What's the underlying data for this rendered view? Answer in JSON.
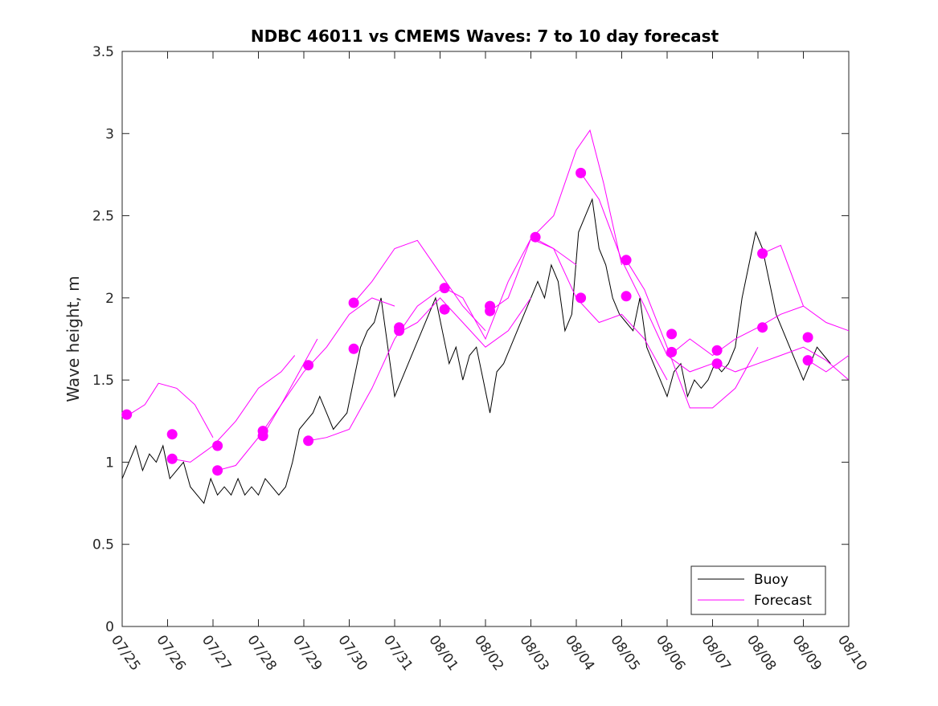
{
  "chart_data": {
    "type": "line",
    "title": "NDBC 46011 vs CMEMS Waves: 7 to 10 day forecast",
    "xlabel": "",
    "ylabel": "Wave height, m",
    "x_ticks": [
      "07/25",
      "07/26",
      "07/27",
      "07/28",
      "07/29",
      "07/30",
      "07/31",
      "08/01",
      "08/02",
      "08/03",
      "08/04",
      "08/05",
      "08/06",
      "08/07",
      "08/08",
      "08/09",
      "08/10"
    ],
    "y_ticks": [
      "0",
      "0.5",
      "1",
      "1.5",
      "2",
      "2.5",
      "3",
      "3.5"
    ],
    "ylim": [
      0,
      3.5
    ],
    "xlim": [
      0,
      16
    ],
    "x_unit": "days after 07/25",
    "grid": false,
    "legend_position": "bottom-right",
    "colors": {
      "buoy": "#000000",
      "forecast": "#ff00ff"
    },
    "series": [
      {
        "name": "Buoy",
        "type": "line",
        "x": [
          0,
          0.15,
          0.3,
          0.45,
          0.6,
          0.75,
          0.9,
          1.05,
          1.2,
          1.35,
          1.5,
          1.65,
          1.8,
          1.95,
          2.1,
          2.25,
          2.4,
          2.55,
          2.7,
          2.85,
          3.0,
          3.15,
          3.3,
          3.45,
          3.6,
          3.75,
          3.9,
          4.05,
          4.2,
          4.35,
          4.5,
          4.65,
          4.8,
          4.95,
          5.1,
          5.25,
          5.4,
          5.55,
          5.7,
          5.85,
          6.0,
          6.15,
          6.3,
          6.45,
          6.6,
          6.75,
          6.9,
          7.05,
          7.2,
          7.35,
          7.5,
          7.65,
          7.8,
          7.95,
          8.1,
          8.25,
          8.4,
          8.55,
          8.7,
          8.85,
          9.0,
          9.15,
          9.3,
          9.45,
          9.6,
          9.75,
          9.9,
          10.05,
          10.2,
          10.35,
          10.5,
          10.65,
          10.8,
          10.95,
          11.1,
          11.25,
          11.4,
          11.55,
          11.7,
          11.85,
          12.0,
          12.15,
          12.3,
          12.45,
          12.6,
          12.75,
          12.9,
          13.05,
          13.2,
          13.35,
          13.5,
          13.65,
          13.8,
          13.95,
          14.1,
          14.25,
          14.4,
          14.55,
          14.7,
          14.85,
          15.0,
          15.15,
          15.3,
          15.45,
          15.6
        ],
        "values": [
          0.9,
          1.0,
          1.1,
          0.95,
          1.05,
          1.0,
          1.1,
          0.9,
          0.95,
          1.0,
          0.85,
          0.8,
          0.75,
          0.9,
          0.8,
          0.85,
          0.8,
          0.9,
          0.8,
          0.85,
          0.8,
          0.9,
          0.85,
          0.8,
          0.85,
          1.0,
          1.2,
          1.25,
          1.3,
          1.4,
          1.3,
          1.2,
          1.25,
          1.3,
          1.5,
          1.7,
          1.8,
          1.85,
          2.0,
          1.7,
          1.4,
          1.5,
          1.6,
          1.7,
          1.8,
          1.9,
          2.0,
          1.8,
          1.6,
          1.7,
          1.5,
          1.65,
          1.7,
          1.5,
          1.3,
          1.55,
          1.6,
          1.7,
          1.8,
          1.9,
          2.0,
          2.1,
          2.0,
          2.2,
          2.1,
          1.8,
          1.9,
          2.4,
          2.5,
          2.6,
          2.3,
          2.2,
          2.0,
          1.9,
          1.85,
          1.8,
          2.0,
          1.7,
          1.6,
          1.5,
          1.4,
          1.55,
          1.6,
          1.4,
          1.5,
          1.45,
          1.5,
          1.6,
          1.55,
          1.6,
          1.7,
          2.0,
          2.2,
          2.4,
          2.3,
          2.1,
          1.9,
          1.8,
          1.7,
          1.6,
          1.5,
          1.6,
          1.7,
          1.65,
          1.6
        ]
      },
      {
        "name": "Forecast",
        "type": "line",
        "curves": [
          {
            "x": [
              0.1,
              0.5,
              0.8,
              1.2,
              1.6,
              2.0
            ],
            "values": [
              1.28,
              1.35,
              1.48,
              1.45,
              1.35,
              1.15
            ]
          },
          {
            "x": [
              1.1,
              1.5,
              2.0,
              2.5,
              3.0,
              3.5,
              3.8
            ],
            "values": [
              1.02,
              1.0,
              1.1,
              1.25,
              1.45,
              1.55,
              1.65
            ]
          },
          {
            "x": [
              2.1,
              2.5,
              3.0,
              3.5,
              4.0,
              4.3
            ],
            "values": [
              0.95,
              0.98,
              1.15,
              1.35,
              1.6,
              1.75
            ]
          },
          {
            "x": [
              3.1,
              3.5,
              4.0,
              4.5,
              5.0,
              5.5,
              6.0
            ],
            "values": [
              1.16,
              1.35,
              1.55,
              1.7,
              1.9,
              2.0,
              1.95
            ]
          },
          {
            "x": [
              4.1,
              4.5,
              5.0,
              5.5,
              6.0,
              6.5,
              7.0
            ],
            "values": [
              1.13,
              1.15,
              1.2,
              1.45,
              1.75,
              1.95,
              2.05
            ]
          },
          {
            "x": [
              5.1,
              5.5,
              6.0,
              6.5,
              7.0,
              7.5,
              8.0
            ],
            "values": [
              1.97,
              2.1,
              2.3,
              2.35,
              2.15,
              1.95,
              1.8
            ]
          },
          {
            "x": [
              6.1,
              6.5,
              7.0,
              7.5,
              8.0,
              8.5,
              9.0
            ],
            "values": [
              1.79,
              1.85,
              2.0,
              1.85,
              1.7,
              1.8,
              2.0
            ]
          },
          {
            "x": [
              7.1,
              7.5,
              8.0,
              8.5,
              9.0,
              9.5,
              10.0
            ],
            "values": [
              2.06,
              2.0,
              1.75,
              2.1,
              2.36,
              2.3,
              2.2
            ]
          },
          {
            "x": [
              8.1,
              8.5,
              9.0,
              9.5,
              10.0,
              10.3,
              10.6,
              11.0
            ],
            "values": [
              1.92,
              2.0,
              2.36,
              2.5,
              2.9,
              3.02,
              2.7,
              2.2
            ]
          },
          {
            "x": [
              9.1,
              9.5,
              10.0,
              10.5,
              11.0,
              11.5,
              12.0
            ],
            "values": [
              2.36,
              2.3,
              2.0,
              1.85,
              1.9,
              1.75,
              1.5
            ]
          },
          {
            "x": [
              10.1,
              10.5,
              11.0,
              11.5,
              12.0,
              12.5,
              13.0
            ],
            "values": [
              2.76,
              2.6,
              2.23,
              1.95,
              1.65,
              1.55,
              1.6
            ]
          },
          {
            "x": [
              11.1,
              11.5,
              12.0,
              12.5,
              13.0,
              13.5,
              14.0
            ],
            "values": [
              2.23,
              2.05,
              1.7,
              1.33,
              1.33,
              1.45,
              1.7
            ]
          },
          {
            "x": [
              12.1,
              12.5,
              13.0,
              13.5,
              14.0,
              14.5,
              15.0
            ],
            "values": [
              1.66,
              1.75,
              1.65,
              1.75,
              1.82,
              1.9,
              1.95
            ]
          },
          {
            "x": [
              13.1,
              13.5,
              14.0,
              14.5,
              15.0,
              15.5,
              16.0
            ],
            "values": [
              1.6,
              1.55,
              1.6,
              1.65,
              1.7,
              1.62,
              1.5
            ]
          },
          {
            "x": [
              14.1,
              14.5,
              15.0,
              15.5,
              16.0
            ],
            "values": [
              2.27,
              2.32,
              1.95,
              1.85,
              1.8
            ]
          },
          {
            "x": [
              15.1,
              15.5,
              16.0
            ],
            "values": [
              1.62,
              1.55,
              1.65
            ]
          }
        ],
        "markers": [
          {
            "x": 0.1,
            "y": 1.29
          },
          {
            "x": 1.1,
            "y": 1.17
          },
          {
            "x": 1.1,
            "y": 1.02
          },
          {
            "x": 2.1,
            "y": 1.1
          },
          {
            "x": 2.1,
            "y": 0.95
          },
          {
            "x": 3.1,
            "y": 1.19
          },
          {
            "x": 3.1,
            "y": 1.16
          },
          {
            "x": 4.1,
            "y": 1.59
          },
          {
            "x": 4.1,
            "y": 1.13
          },
          {
            "x": 5.1,
            "y": 1.97
          },
          {
            "x": 5.1,
            "y": 1.69
          },
          {
            "x": 6.1,
            "y": 1.82
          },
          {
            "x": 6.1,
            "y": 1.8
          },
          {
            "x": 7.1,
            "y": 2.06
          },
          {
            "x": 7.1,
            "y": 1.93
          },
          {
            "x": 8.1,
            "y": 1.95
          },
          {
            "x": 8.1,
            "y": 1.92
          },
          {
            "x": 9.1,
            "y": 2.37
          },
          {
            "x": 10.1,
            "y": 2.76
          },
          {
            "x": 10.1,
            "y": 2.0
          },
          {
            "x": 11.1,
            "y": 2.23
          },
          {
            "x": 11.1,
            "y": 2.01
          },
          {
            "x": 12.1,
            "y": 1.78
          },
          {
            "x": 12.1,
            "y": 1.67
          },
          {
            "x": 13.1,
            "y": 1.68
          },
          {
            "x": 13.1,
            "y": 1.6
          },
          {
            "x": 14.1,
            "y": 2.27
          },
          {
            "x": 14.1,
            "y": 1.82
          },
          {
            "x": 15.1,
            "y": 1.76
          },
          {
            "x": 15.1,
            "y": 1.62
          }
        ]
      }
    ],
    "legend": [
      "Buoy",
      "Forecast"
    ]
  }
}
